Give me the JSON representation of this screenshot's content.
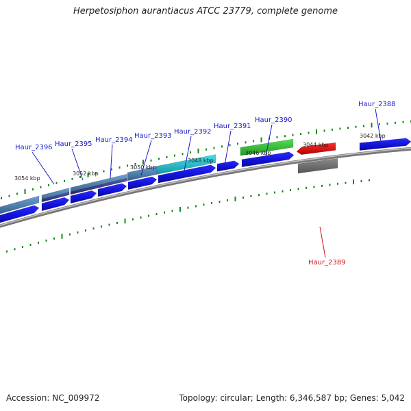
{
  "title": "Herpetosiphon aurantiacus ATCC 23779, complete genome",
  "accession": "Accession: NC_009972",
  "genome_info": "Topology: circular; Length: 6,346,587 bp; Genes: 5,042",
  "colors": {
    "backbone": "#8c8c8c",
    "forward_cds": "#1414e0",
    "tick": "#118811",
    "label_blue": "#1a1ac8",
    "label_red": "#cc1111",
    "highlight_gene": "#e81010",
    "highlight_partner": "#6e6e6e",
    "green_feature": "#33bb33",
    "cyan_feature": "#22c4d0",
    "steel_feature": "#4a7fb0",
    "purple_feature": "#3d3d8a"
  },
  "kbp_ticks": [
    "3054 kbp",
    "3052 kbp",
    "3050 kbp",
    "3048 kbp",
    "3046 kbp",
    "3044 kbp",
    "3042 kbp"
  ],
  "gene_labels": [
    {
      "name": "Haur_2396",
      "color": "blue"
    },
    {
      "name": "Haur_2395",
      "color": "blue"
    },
    {
      "name": "Haur_2394",
      "color": "blue"
    },
    {
      "name": "Haur_2393",
      "color": "blue"
    },
    {
      "name": "Haur_2392",
      "color": "blue"
    },
    {
      "name": "Haur_2391",
      "color": "blue"
    },
    {
      "name": "Haur_2390",
      "color": "blue"
    },
    {
      "name": "Haur_2388",
      "color": "blue"
    },
    {
      "name": "Haur_2389",
      "color": "red"
    }
  ]
}
